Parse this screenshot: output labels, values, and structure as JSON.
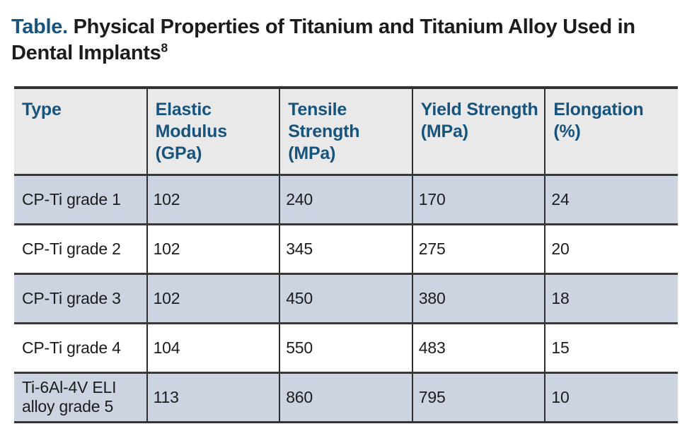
{
  "title": {
    "prefix": "Table.",
    "text": " Physical Properties of Titanium and Titanium Alloy Used in Dental Implants",
    "superscript": "8"
  },
  "table": {
    "columns": [
      "Type",
      "Elastic Modulus (GPa)",
      "Tensile Strength (MPa)",
      "Yield Strength (MPa)",
      "Elongation (%)"
    ],
    "rows": [
      {
        "type": "CP-Ti grade 1",
        "elastic_modulus": "102",
        "tensile_strength": "240",
        "yield_strength": "170",
        "elongation": "24"
      },
      {
        "type": "CP-Ti grade 2",
        "elastic_modulus": "102",
        "tensile_strength": "345",
        "yield_strength": "275",
        "elongation": "20"
      },
      {
        "type": "CP-Ti grade 3",
        "elastic_modulus": "102",
        "tensile_strength": "450",
        "yield_strength": "380",
        "elongation": "18"
      },
      {
        "type": "CP-Ti grade 4",
        "elastic_modulus": "104",
        "tensile_strength": "550",
        "yield_strength": "483",
        "elongation": "15"
      },
      {
        "type": "Ti-6Al-4V ELI alloy grade 5",
        "elastic_modulus": "113",
        "tensile_strength": "860",
        "yield_strength": "795",
        "elongation": "10"
      }
    ]
  },
  "colors": {
    "accent_blue": "#16537D",
    "header_bg": "#E9E9EA",
    "row_shaded_bg": "#CDD4E1",
    "border_dark": "#333333",
    "text_black": "#1C1C1C"
  }
}
